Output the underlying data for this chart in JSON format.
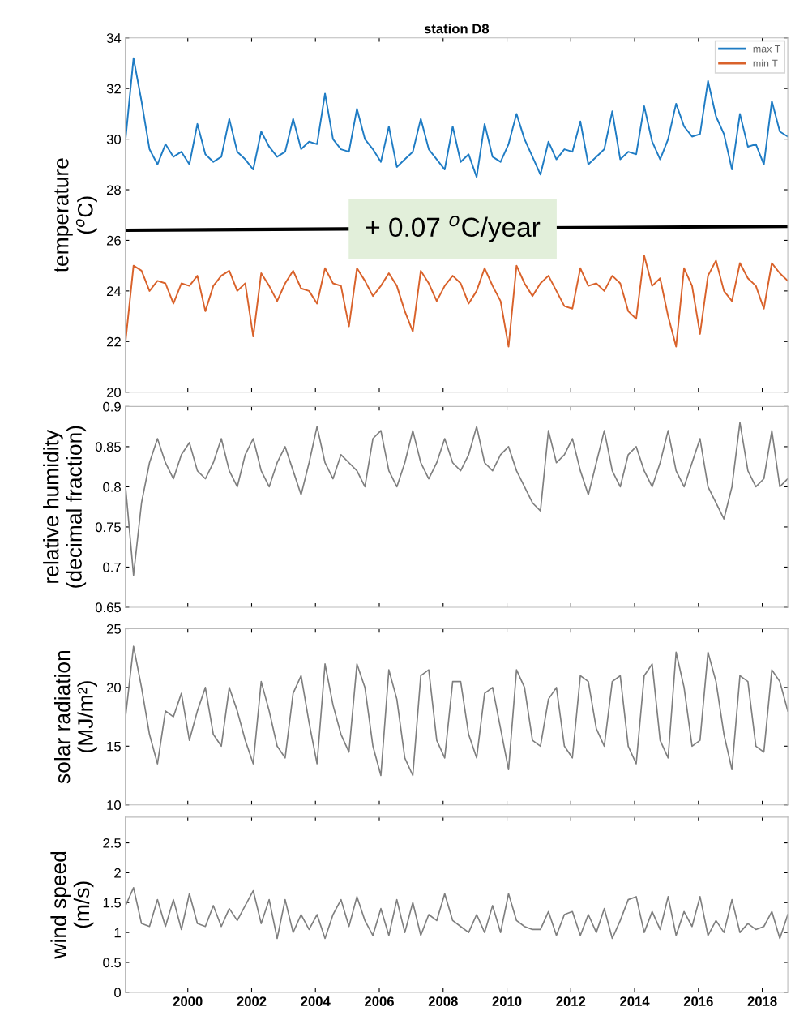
{
  "chart_data": [
    {
      "type": "line",
      "title": "station D8",
      "ylabel": "temperature\n($^{o}$C)",
      "xlim": [
        1998.04,
        2018.8
      ],
      "xticks": [
        2000,
        2002,
        2004,
        2006,
        2008,
        2010,
        2012,
        2014,
        2016,
        2018
      ],
      "ylim": [
        20,
        34
      ],
      "yticks": [
        20,
        22,
        24,
        26,
        28,
        30,
        32,
        34
      ],
      "tick_labels": "y",
      "legend": "top right",
      "x": [
        1998.05,
        1998.3,
        1998.55,
        1998.8,
        1999.05,
        1999.3,
        1999.55,
        1999.8,
        2000.05,
        2000.3,
        2000.55,
        2000.8,
        2001.05,
        2001.3,
        2001.55,
        2001.8,
        2002.05,
        2002.3,
        2002.55,
        2002.8,
        2003.05,
        2003.3,
        2003.55,
        2003.8,
        2004.05,
        2004.3,
        2004.55,
        2004.8,
        2005.05,
        2005.3,
        2005.55,
        2005.8,
        2006.05,
        2006.3,
        2006.55,
        2006.8,
        2007.05,
        2007.3,
        2007.55,
        2007.8,
        2008.05,
        2008.3,
        2008.55,
        2008.8,
        2009.05,
        2009.3,
        2009.55,
        2009.8,
        2010.05,
        2010.3,
        2010.55,
        2010.8,
        2011.05,
        2011.3,
        2011.55,
        2011.8,
        2012.05,
        2012.3,
        2012.55,
        2012.8,
        2013.05,
        2013.3,
        2013.55,
        2013.8,
        2014.05,
        2014.3,
        2014.55,
        2014.8,
        2015.05,
        2015.3,
        2015.55,
        2015.8,
        2016.05,
        2016.3,
        2016.55,
        2016.8,
        2017.05,
        2017.3,
        2017.55,
        2017.8,
        2018.05,
        2018.3,
        2018.55,
        2018.8
      ],
      "series": [
        {
          "name": "max T",
          "color": "#1f7cc4",
          "values": [
            30.0,
            33.2,
            31.5,
            29.6,
            29.0,
            29.8,
            29.3,
            29.5,
            29.0,
            30.6,
            29.4,
            29.1,
            29.3,
            30.8,
            29.5,
            29.2,
            28.8,
            30.3,
            29.7,
            29.3,
            29.5,
            30.8,
            29.6,
            29.9,
            29.8,
            31.8,
            30.0,
            29.6,
            29.5,
            31.2,
            30.0,
            29.6,
            29.1,
            30.5,
            28.9,
            29.2,
            29.5,
            30.8,
            29.6,
            29.2,
            28.8,
            30.5,
            29.1,
            29.4,
            28.5,
            30.6,
            29.3,
            29.1,
            29.8,
            31.0,
            30.0,
            29.3,
            28.6,
            29.9,
            29.2,
            29.6,
            29.5,
            30.7,
            29.0,
            29.3,
            29.6,
            31.1,
            29.2,
            29.5,
            29.4,
            31.3,
            29.9,
            29.2,
            30.0,
            31.4,
            30.5,
            30.1,
            30.2,
            32.3,
            30.9,
            30.2,
            28.8,
            31.0,
            29.7,
            29.8,
            29.0,
            31.5,
            30.3,
            30.1
          ]
        },
        {
          "name": "min T",
          "color": "#d9622b",
          "values": [
            22.0,
            25.0,
            24.8,
            24.0,
            24.4,
            24.3,
            23.5,
            24.3,
            24.2,
            24.6,
            23.2,
            24.2,
            24.6,
            24.8,
            24.0,
            24.3,
            22.2,
            24.7,
            24.2,
            23.6,
            24.3,
            24.8,
            24.1,
            24.0,
            23.5,
            24.9,
            24.3,
            24.2,
            22.6,
            24.9,
            24.4,
            23.8,
            24.2,
            24.7,
            24.2,
            23.2,
            22.4,
            24.8,
            24.3,
            23.6,
            24.2,
            24.6,
            24.3,
            23.5,
            24.0,
            24.9,
            24.2,
            23.6,
            21.8,
            25.0,
            24.3,
            23.8,
            24.3,
            24.6,
            24.0,
            23.4,
            23.3,
            24.9,
            24.2,
            24.3,
            24.0,
            24.6,
            24.3,
            23.2,
            22.9,
            25.4,
            24.2,
            24.5,
            23.0,
            21.8,
            24.9,
            24.2,
            22.3,
            24.6,
            25.2,
            24.0,
            23.6,
            25.1,
            24.5,
            24.2,
            23.3,
            25.1,
            24.7,
            24.4
          ]
        },
        {
          "type": "line",
          "color": "#000000",
          "x": [
            1998.04,
            2018.8
          ],
          "values": [
            26.4,
            26.55
          ]
        }
      ],
      "annotations": [
        {
          "text": "+ 0.07 $^{o}$C/year",
          "x": 2008.3,
          "y": 26.45
        }
      ]
    },
    {
      "type": "line",
      "ylabel": "relative humidity\n(decimal fraction)",
      "xlim": [
        1998.04,
        2018.8
      ],
      "xticks": [
        2000,
        2002,
        2004,
        2006,
        2008,
        2010,
        2012,
        2014,
        2016,
        2018
      ],
      "ylim": [
        0.65,
        0.9
      ],
      "yticks": [
        0.65,
        0.7,
        0.75,
        0.8,
        0.85,
        0.9
      ],
      "tick_labels": "y",
      "x": [
        1998.05,
        1998.3,
        1998.55,
        1998.8,
        1999.05,
        1999.3,
        1999.55,
        1999.8,
        2000.05,
        2000.3,
        2000.55,
        2000.8,
        2001.05,
        2001.3,
        2001.55,
        2001.8,
        2002.05,
        2002.3,
        2002.55,
        2002.8,
        2003.05,
        2003.3,
        2003.55,
        2003.8,
        2004.05,
        2004.3,
        2004.55,
        2004.8,
        2005.05,
        2005.3,
        2005.55,
        2005.8,
        2006.05,
        2006.3,
        2006.55,
        2006.8,
        2007.05,
        2007.3,
        2007.55,
        2007.8,
        2008.05,
        2008.3,
        2008.55,
        2008.8,
        2009.05,
        2009.3,
        2009.55,
        2009.8,
        2010.05,
        2010.3,
        2010.55,
        2010.8,
        2011.05,
        2011.3,
        2011.55,
        2011.8,
        2012.05,
        2012.3,
        2012.55,
        2012.8,
        2013.05,
        2013.3,
        2013.55,
        2013.8,
        2014.05,
        2014.3,
        2014.55,
        2014.8,
        2015.05,
        2015.3,
        2015.55,
        2015.8,
        2016.05,
        2016.3,
        2016.55,
        2016.8,
        2017.05,
        2017.3,
        2017.55,
        2017.8,
        2018.05,
        2018.3,
        2018.55,
        2018.8
      ],
      "series": [
        {
          "color": "#7f7f7f",
          "values": [
            0.8,
            0.69,
            0.78,
            0.83,
            0.86,
            0.83,
            0.81,
            0.84,
            0.855,
            0.82,
            0.81,
            0.83,
            0.86,
            0.82,
            0.8,
            0.84,
            0.86,
            0.82,
            0.8,
            0.83,
            0.85,
            0.82,
            0.79,
            0.83,
            0.875,
            0.83,
            0.81,
            0.84,
            0.83,
            0.82,
            0.8,
            0.86,
            0.87,
            0.82,
            0.8,
            0.83,
            0.87,
            0.83,
            0.81,
            0.83,
            0.86,
            0.83,
            0.82,
            0.84,
            0.875,
            0.83,
            0.82,
            0.84,
            0.85,
            0.82,
            0.8,
            0.78,
            0.77,
            0.87,
            0.83,
            0.84,
            0.86,
            0.82,
            0.79,
            0.83,
            0.87,
            0.82,
            0.8,
            0.84,
            0.85,
            0.82,
            0.8,
            0.83,
            0.87,
            0.82,
            0.8,
            0.83,
            0.86,
            0.8,
            0.78,
            0.76,
            0.8,
            0.88,
            0.82,
            0.8,
            0.81,
            0.87,
            0.8,
            0.81
          ]
        }
      ]
    },
    {
      "type": "line",
      "ylabel": "solar radiation\n(MJ/m²)",
      "xlim": [
        1998.04,
        2018.8
      ],
      "xticks": [
        2000,
        2002,
        2004,
        2006,
        2008,
        2010,
        2012,
        2014,
        2016,
        2018
      ],
      "ylim": [
        10,
        25
      ],
      "yticks": [
        10,
        15,
        20,
        25
      ],
      "tick_labels": "y",
      "x": [
        1998.05,
        1998.3,
        1998.55,
        1998.8,
        1999.05,
        1999.3,
        1999.55,
        1999.8,
        2000.05,
        2000.3,
        2000.55,
        2000.8,
        2001.05,
        2001.3,
        2001.55,
        2001.8,
        2002.05,
        2002.3,
        2002.55,
        2002.8,
        2003.05,
        2003.3,
        2003.55,
        2003.8,
        2004.05,
        2004.3,
        2004.55,
        2004.8,
        2005.05,
        2005.3,
        2005.55,
        2005.8,
        2006.05,
        2006.3,
        2006.55,
        2006.8,
        2007.05,
        2007.3,
        2007.55,
        2007.8,
        2008.05,
        2008.3,
        2008.55,
        2008.8,
        2009.05,
        2009.3,
        2009.55,
        2009.8,
        2010.05,
        2010.3,
        2010.55,
        2010.8,
        2011.05,
        2011.3,
        2011.55,
        2011.8,
        2012.05,
        2012.3,
        2012.55,
        2012.8,
        2013.05,
        2013.3,
        2013.55,
        2013.8,
        2014.05,
        2014.3,
        2014.55,
        2014.8,
        2015.05,
        2015.3,
        2015.55,
        2015.8,
        2016.05,
        2016.3,
        2016.55,
        2016.8,
        2017.05,
        2017.3,
        2017.55,
        2017.8,
        2018.05,
        2018.3,
        2018.55,
        2018.8
      ],
      "series": [
        {
          "color": "#7f7f7f",
          "values": [
            17.5,
            23.5,
            20.0,
            16.0,
            13.5,
            18.0,
            17.5,
            19.5,
            15.5,
            18.0,
            20.0,
            16.0,
            15.0,
            20.0,
            18.0,
            15.5,
            13.5,
            20.5,
            18.0,
            15.0,
            14.0,
            19.5,
            21.0,
            17.0,
            13.5,
            22.0,
            18.5,
            16.0,
            14.5,
            22.0,
            20.0,
            15.0,
            12.5,
            21.5,
            19.0,
            14.0,
            12.5,
            21.0,
            21.5,
            15.5,
            14.0,
            20.5,
            20.5,
            16.0,
            14.0,
            19.5,
            20.0,
            16.5,
            13.0,
            21.5,
            20.0,
            15.5,
            15.0,
            19.0,
            20.0,
            15.0,
            14.0,
            21.0,
            20.5,
            16.5,
            15.0,
            20.5,
            21.0,
            15.0,
            13.5,
            21.0,
            22.0,
            15.5,
            14.0,
            23.0,
            20.0,
            15.0,
            15.5,
            23.0,
            20.5,
            16.0,
            13.0,
            21.0,
            20.5,
            15.0,
            14.5,
            21.5,
            20.5,
            18.0
          ]
        }
      ]
    },
    {
      "type": "line",
      "ylabel": "wind speed\n(m/s)",
      "xlim": [
        1998.04,
        2018.8
      ],
      "xticks": [
        2000,
        2002,
        2004,
        2006,
        2008,
        2010,
        2012,
        2014,
        2016,
        2018
      ],
      "ylim": [
        0,
        2.93
      ],
      "yticks": [
        0,
        0.5,
        1,
        1.5,
        2,
        2.5
      ],
      "x": [
        1998.05,
        1998.3,
        1998.55,
        1998.8,
        1999.05,
        1999.3,
        1999.55,
        1999.8,
        2000.05,
        2000.3,
        2000.55,
        2000.8,
        2001.05,
        2001.3,
        2001.55,
        2001.8,
        2002.05,
        2002.3,
        2002.55,
        2002.8,
        2003.05,
        2003.3,
        2003.55,
        2003.8,
        2004.05,
        2004.3,
        2004.55,
        2004.8,
        2005.05,
        2005.3,
        2005.55,
        2005.8,
        2006.05,
        2006.3,
        2006.55,
        2006.8,
        2007.05,
        2007.3,
        2007.55,
        2007.8,
        2008.05,
        2008.3,
        2008.55,
        2008.8,
        2009.05,
        2009.3,
        2009.55,
        2009.8,
        2010.05,
        2010.3,
        2010.55,
        2010.8,
        2011.05,
        2011.3,
        2011.55,
        2011.8,
        2012.05,
        2012.3,
        2012.55,
        2012.8,
        2013.05,
        2013.3,
        2013.55,
        2013.8,
        2014.05,
        2014.3,
        2014.55,
        2014.8,
        2015.05,
        2015.3,
        2015.55,
        2015.8,
        2016.05,
        2016.3,
        2016.55,
        2016.8,
        2017.05,
        2017.3,
        2017.55,
        2017.8,
        2018.05,
        2018.3,
        2018.55,
        2018.8
      ],
      "series": [
        {
          "color": "#7f7f7f",
          "values": [
            1.45,
            1.75,
            1.15,
            1.1,
            1.55,
            1.1,
            1.55,
            1.05,
            1.65,
            1.15,
            1.1,
            1.45,
            1.1,
            1.4,
            1.2,
            1.45,
            1.7,
            1.15,
            1.55,
            0.9,
            1.55,
            1.0,
            1.3,
            1.05,
            1.3,
            0.9,
            1.3,
            1.55,
            1.1,
            1.6,
            1.2,
            0.95,
            1.4,
            0.95,
            1.55,
            1.0,
            1.5,
            0.95,
            1.3,
            1.2,
            1.65,
            1.2,
            1.1,
            1.0,
            1.3,
            1.0,
            1.45,
            1.0,
            1.65,
            1.2,
            1.1,
            1.05,
            1.05,
            1.35,
            0.95,
            1.3,
            1.35,
            0.95,
            1.3,
            1.0,
            1.4,
            0.9,
            1.2,
            1.55,
            1.6,
            1.0,
            1.35,
            1.05,
            1.6,
            0.95,
            1.35,
            1.1,
            1.6,
            0.95,
            1.2,
            1.0,
            1.55,
            1.0,
            1.15,
            1.05,
            1.1,
            1.35,
            0.9,
            1.3
          ]
        }
      ]
    }
  ]
}
